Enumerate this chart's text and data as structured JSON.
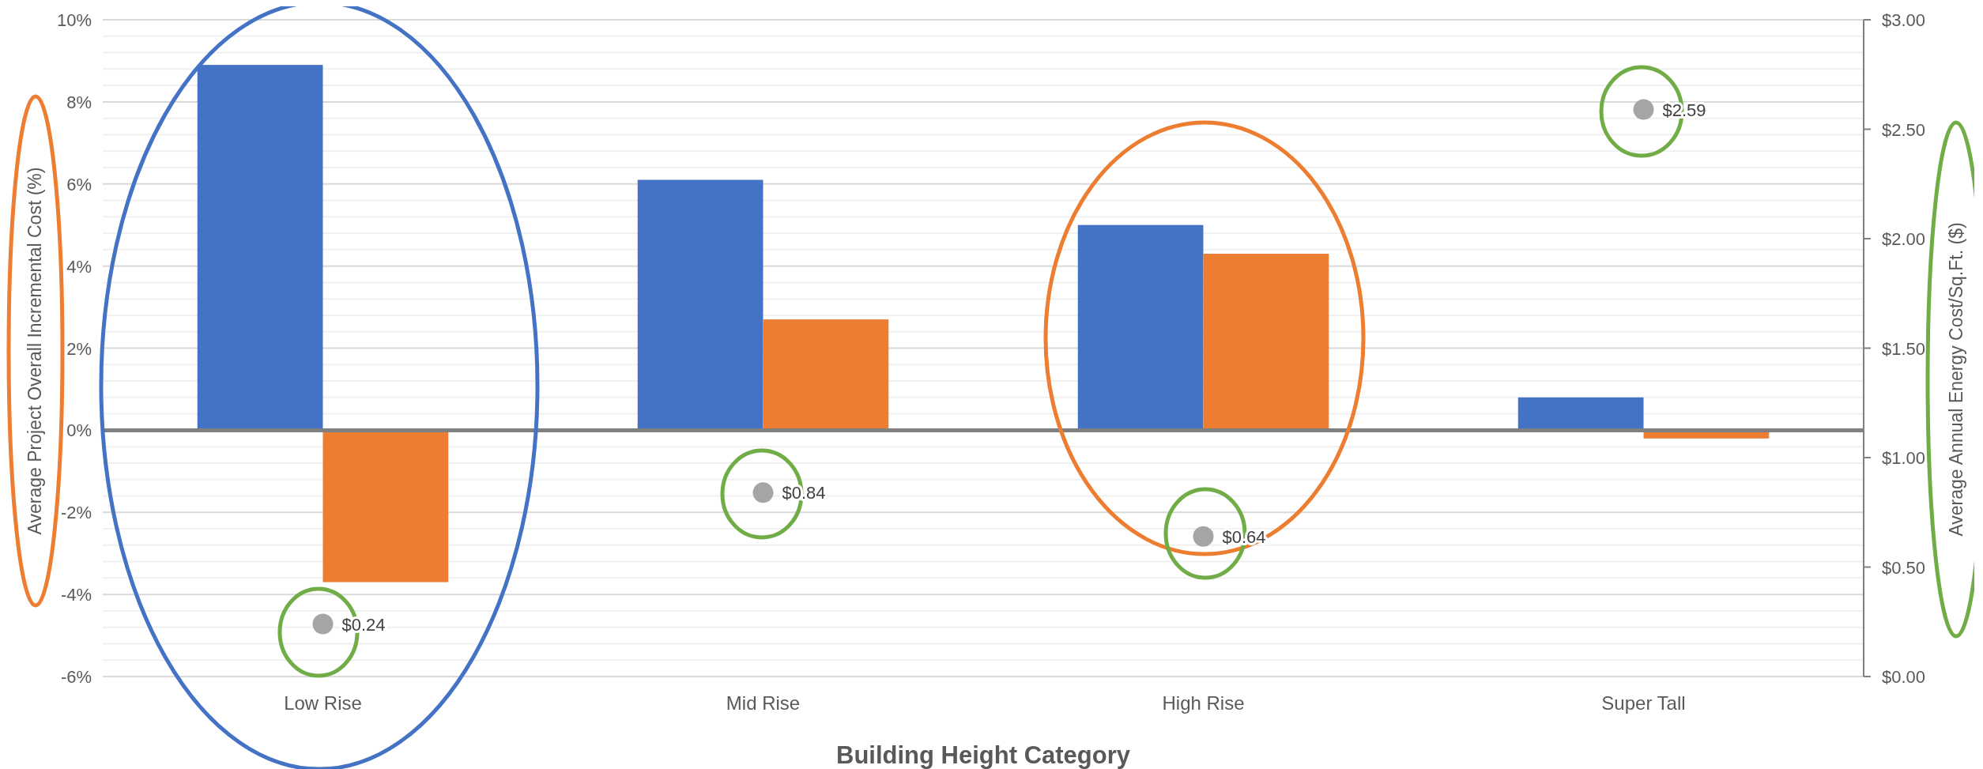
{
  "chart_data": {
    "type": "bar",
    "xlabel": "Building Height Category",
    "ylabel": "Average Project Overall Incremental Cost (%)",
    "y2label": "Average Annual Energy Cost/Sq.Ft. ($)",
    "categories": [
      "Low Rise",
      "Mid Rise",
      "High Rise",
      "Super Tall"
    ],
    "series": [
      {
        "color": "#4472c4",
        "values": [
          8.9,
          6.1,
          5.0,
          0.8
        ]
      },
      {
        "color": "#ed7d31",
        "values": [
          -3.7,
          2.7,
          4.3,
          -0.2
        ]
      },
      {
        "type": "scatter",
        "axis": "y2",
        "color": "#a5a5a5",
        "values": [
          0.24,
          0.84,
          0.64,
          2.59
        ],
        "value_labels": [
          "$0.24",
          "$0.84",
          "$0.64",
          "$2.59"
        ]
      }
    ],
    "ylim": [
      -6,
      10
    ],
    "yticks": [
      {
        "value": -6,
        "label": "-6%"
      },
      {
        "value": -4,
        "label": "-4%"
      },
      {
        "value": -2,
        "label": "-2%"
      },
      {
        "value": 0,
        "label": "0%"
      },
      {
        "value": 2,
        "label": "2%"
      },
      {
        "value": 4,
        "label": "4%"
      },
      {
        "value": 6,
        "label": "6%"
      },
      {
        "value": 8,
        "label": "8%"
      },
      {
        "value": 10,
        "label": "10%"
      }
    ],
    "y2lim": [
      0,
      3
    ],
    "y2ticks": [
      {
        "value": 0,
        "label": "$0.00"
      },
      {
        "value": 0.5,
        "label": "$0.50"
      },
      {
        "value": 1,
        "label": "$1.00"
      },
      {
        "value": 1.5,
        "label": "$1.50"
      },
      {
        "value": 2,
        "label": "$2.00"
      },
      {
        "value": 2.5,
        "label": "$2.50"
      },
      {
        "value": 3,
        "label": "$3.00"
      }
    ],
    "grid": "y",
    "marker": "circle"
  }
}
